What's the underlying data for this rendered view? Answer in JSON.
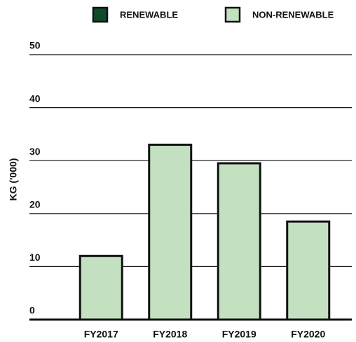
{
  "chart_data": {
    "type": "stacked_bar",
    "y_label": "KG ('000)",
    "categories": [
      "FY2017",
      "FY2018",
      "FY2019",
      "FY2020"
    ],
    "series": [
      {
        "name": "RENEWABLE",
        "color": "#0f4a2b",
        "values": [
          0,
          0,
          0,
          0
        ]
      },
      {
        "name": "NON-RENEWABLE",
        "color": "#c3e0c0",
        "values": [
          12,
          33,
          29.5,
          18.5
        ]
      }
    ],
    "ylim": [
      0,
      50
    ],
    "yticks": [
      0,
      10,
      20,
      30,
      40,
      50
    ],
    "grid": true,
    "legend": "top"
  }
}
